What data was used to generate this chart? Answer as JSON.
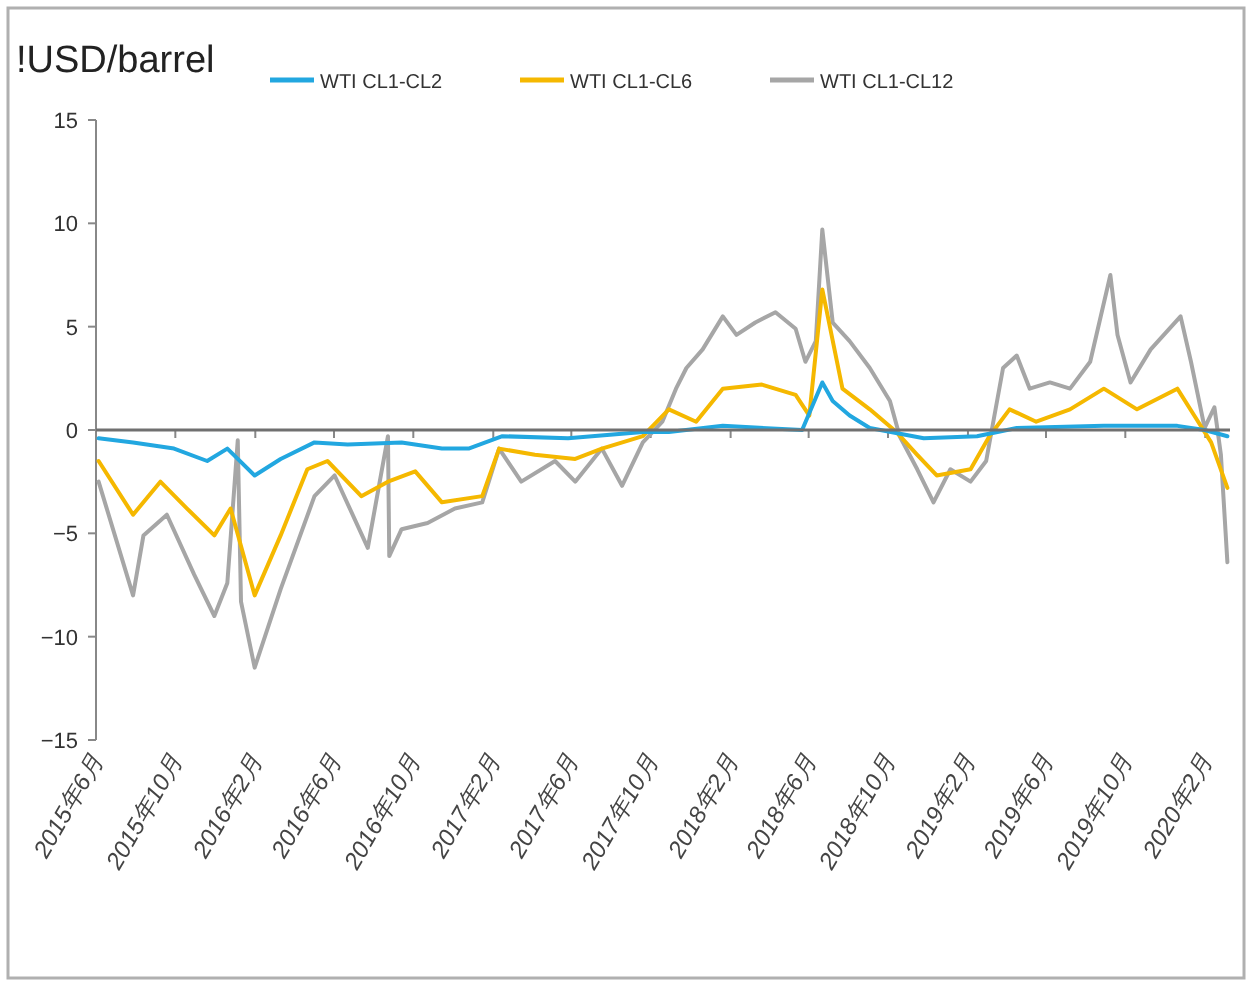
{
  "chart_data": {
    "type": "line",
    "ylabel": "!USD/barrel",
    "legend": "top",
    "marker": "none",
    "line_style": "solid",
    "ref_lines": [
      {
        "axis": "y",
        "value": 0,
        "color": "#707070"
      }
    ],
    "xlim": [
      "2015-06-01",
      "2020-03-10"
    ],
    "xticks": [
      {
        "value": "2015-06-01",
        "label": "2015年6月"
      },
      {
        "value": "2015-10-01",
        "label": "2015年10月"
      },
      {
        "value": "2016-02-01",
        "label": "2016年2月"
      },
      {
        "value": "2016-06-01",
        "label": "2016年6月"
      },
      {
        "value": "2016-10-01",
        "label": "2016年10月"
      },
      {
        "value": "2017-02-01",
        "label": "2017年2月"
      },
      {
        "value": "2017-06-01",
        "label": "2017年6月"
      },
      {
        "value": "2017-10-01",
        "label": "2017年10月"
      },
      {
        "value": "2018-02-01",
        "label": "2018年2月"
      },
      {
        "value": "2018-06-01",
        "label": "2018年6月"
      },
      {
        "value": "2018-10-01",
        "label": "2018年10月"
      },
      {
        "value": "2019-02-01",
        "label": "2019年2月"
      },
      {
        "value": "2019-06-01",
        "label": "2019年6月"
      },
      {
        "value": "2019-10-01",
        "label": "2019年10月"
      },
      {
        "value": "2020-02-01",
        "label": "2020年2月"
      }
    ],
    "ylim": [
      -15,
      15
    ],
    "yticks": [
      -15,
      -10,
      -5,
      0,
      5,
      10,
      15
    ],
    "series": [
      {
        "name": "WTI CL1-CL2",
        "color": "#22a7e0",
        "x": [
          "2015-06-05",
          "2015-07-28",
          "2015-09-29",
          "2015-11-19",
          "2015-12-20",
          "2016-01-31",
          "2016-03-11",
          "2016-05-02",
          "2016-06-22",
          "2016-09-13",
          "2016-11-14",
          "2016-12-25",
          "2017-02-15",
          "2017-05-27",
          "2017-09-19",
          "2017-10-29",
          "2018-01-20",
          "2018-05-22",
          "2018-06-22",
          "2018-07-08",
          "2018-08-03",
          "2018-09-03",
          "2018-11-25",
          "2019-02-15",
          "2019-04-17",
          "2019-08-29",
          "2019-12-20",
          "2020-01-31",
          "2020-03-06"
        ],
        "values": [
          -0.4,
          -0.6,
          -0.9,
          -1.5,
          -0.9,
          -2.2,
          -1.4,
          -0.6,
          -0.7,
          -0.6,
          -0.9,
          -0.9,
          -0.3,
          -0.4,
          -0.1,
          -0.1,
          0.2,
          0.0,
          2.3,
          1.4,
          0.7,
          0.1,
          -0.4,
          -0.3,
          0.1,
          0.2,
          0.2,
          0.0,
          -0.3
        ]
      },
      {
        "name": "WTI CL1-CL6",
        "color": "#f5b800",
        "x": [
          "2015-06-05",
          "2015-07-28",
          "2015-09-08",
          "2015-10-19",
          "2015-11-30",
          "2015-12-25",
          "2016-01-31",
          "2016-03-11",
          "2016-04-21",
          "2016-05-22",
          "2016-07-13",
          "2016-08-23",
          "2016-10-04",
          "2016-11-14",
          "2017-01-15",
          "2017-02-10",
          "2017-04-06",
          "2017-06-07",
          "2017-07-18",
          "2017-09-19",
          "2017-10-29",
          "2017-12-10",
          "2018-01-20",
          "2018-03-21",
          "2018-05-12",
          "2018-06-02",
          "2018-06-22",
          "2018-07-23",
          "2018-09-03",
          "2018-10-14",
          "2018-11-15",
          "2018-12-15",
          "2019-02-05",
          "2019-03-06",
          "2019-04-06",
          "2019-05-17",
          "2019-07-08",
          "2019-08-29",
          "2019-10-19",
          "2019-12-20",
          "2020-01-15",
          "2020-02-10",
          "2020-03-06"
        ],
        "values": [
          -1.5,
          -4.1,
          -2.5,
          -3.8,
          -5.1,
          -3.8,
          -8.0,
          -5.1,
          -1.9,
          -1.5,
          -3.2,
          -2.5,
          -2.0,
          -3.5,
          -3.2,
          -0.9,
          -1.2,
          -1.4,
          -0.9,
          -0.3,
          1.0,
          0.4,
          2.0,
          2.2,
          1.7,
          0.7,
          6.8,
          2.0,
          1.0,
          -0.1,
          -1.2,
          -2.2,
          -1.9,
          -0.3,
          1.0,
          0.4,
          1.0,
          2.0,
          1.0,
          2.0,
          0.7,
          -0.6,
          -2.8
        ]
      },
      {
        "name": "WTI CL1-CL12",
        "color": "#a6a6a6",
        "x": [
          "2015-06-05",
          "2015-07-28",
          "2015-08-13",
          "2015-09-18",
          "2015-10-30",
          "2015-11-30",
          "2015-12-20",
          "2016-01-05",
          "2016-01-10",
          "2016-01-31",
          "2016-03-11",
          "2016-05-02",
          "2016-06-02",
          "2016-07-23",
          "2016-08-23",
          "2016-08-25",
          "2016-09-13",
          "2016-10-23",
          "2016-12-04",
          "2017-01-15",
          "2017-02-10",
          "2017-03-16",
          "2017-05-07",
          "2017-06-07",
          "2017-07-18",
          "2017-08-18",
          "2017-09-19",
          "2017-10-19",
          "2017-11-09",
          "2017-11-25",
          "2017-12-20",
          "2018-01-20",
          "2018-02-10",
          "2018-03-11",
          "2018-04-11",
          "2018-05-12",
          "2018-05-27",
          "2018-06-12",
          "2018-06-22",
          "2018-07-08",
          "2018-08-03",
          "2018-09-03",
          "2018-10-04",
          "2018-10-19",
          "2018-11-15",
          "2018-12-10",
          "2019-01-05",
          "2019-02-05",
          "2019-03-01",
          "2019-03-27",
          "2019-04-17",
          "2019-05-07",
          "2019-06-07",
          "2019-07-08",
          "2019-08-08",
          "2019-09-08",
          "2019-09-19",
          "2019-10-09",
          "2019-11-09",
          "2019-12-25",
          "2020-01-10",
          "2020-01-31",
          "2020-02-15",
          "2020-02-25",
          "2020-03-06"
        ],
        "values": [
          -2.5,
          -8.0,
          -5.1,
          -4.1,
          -7.0,
          -9.0,
          -7.4,
          -0.5,
          -8.3,
          -11.5,
          -7.7,
          -3.2,
          -2.2,
          -5.7,
          -0.3,
          -6.1,
          -4.8,
          -4.5,
          -3.8,
          -3.5,
          -0.9,
          -2.5,
          -1.5,
          -2.5,
          -0.9,
          -2.7,
          -0.6,
          0.4,
          2.0,
          3.0,
          3.9,
          5.5,
          4.6,
          5.2,
          5.7,
          4.9,
          3.3,
          4.3,
          9.7,
          5.2,
          4.3,
          3.0,
          1.4,
          -0.3,
          -1.9,
          -3.5,
          -1.9,
          -2.5,
          -1.5,
          3.0,
          3.6,
          2.0,
          2.3,
          2.0,
          3.3,
          7.5,
          4.6,
          2.3,
          3.9,
          5.5,
          3.3,
          0.1,
          1.1,
          -1.2,
          -6.4
        ]
      }
    ]
  }
}
